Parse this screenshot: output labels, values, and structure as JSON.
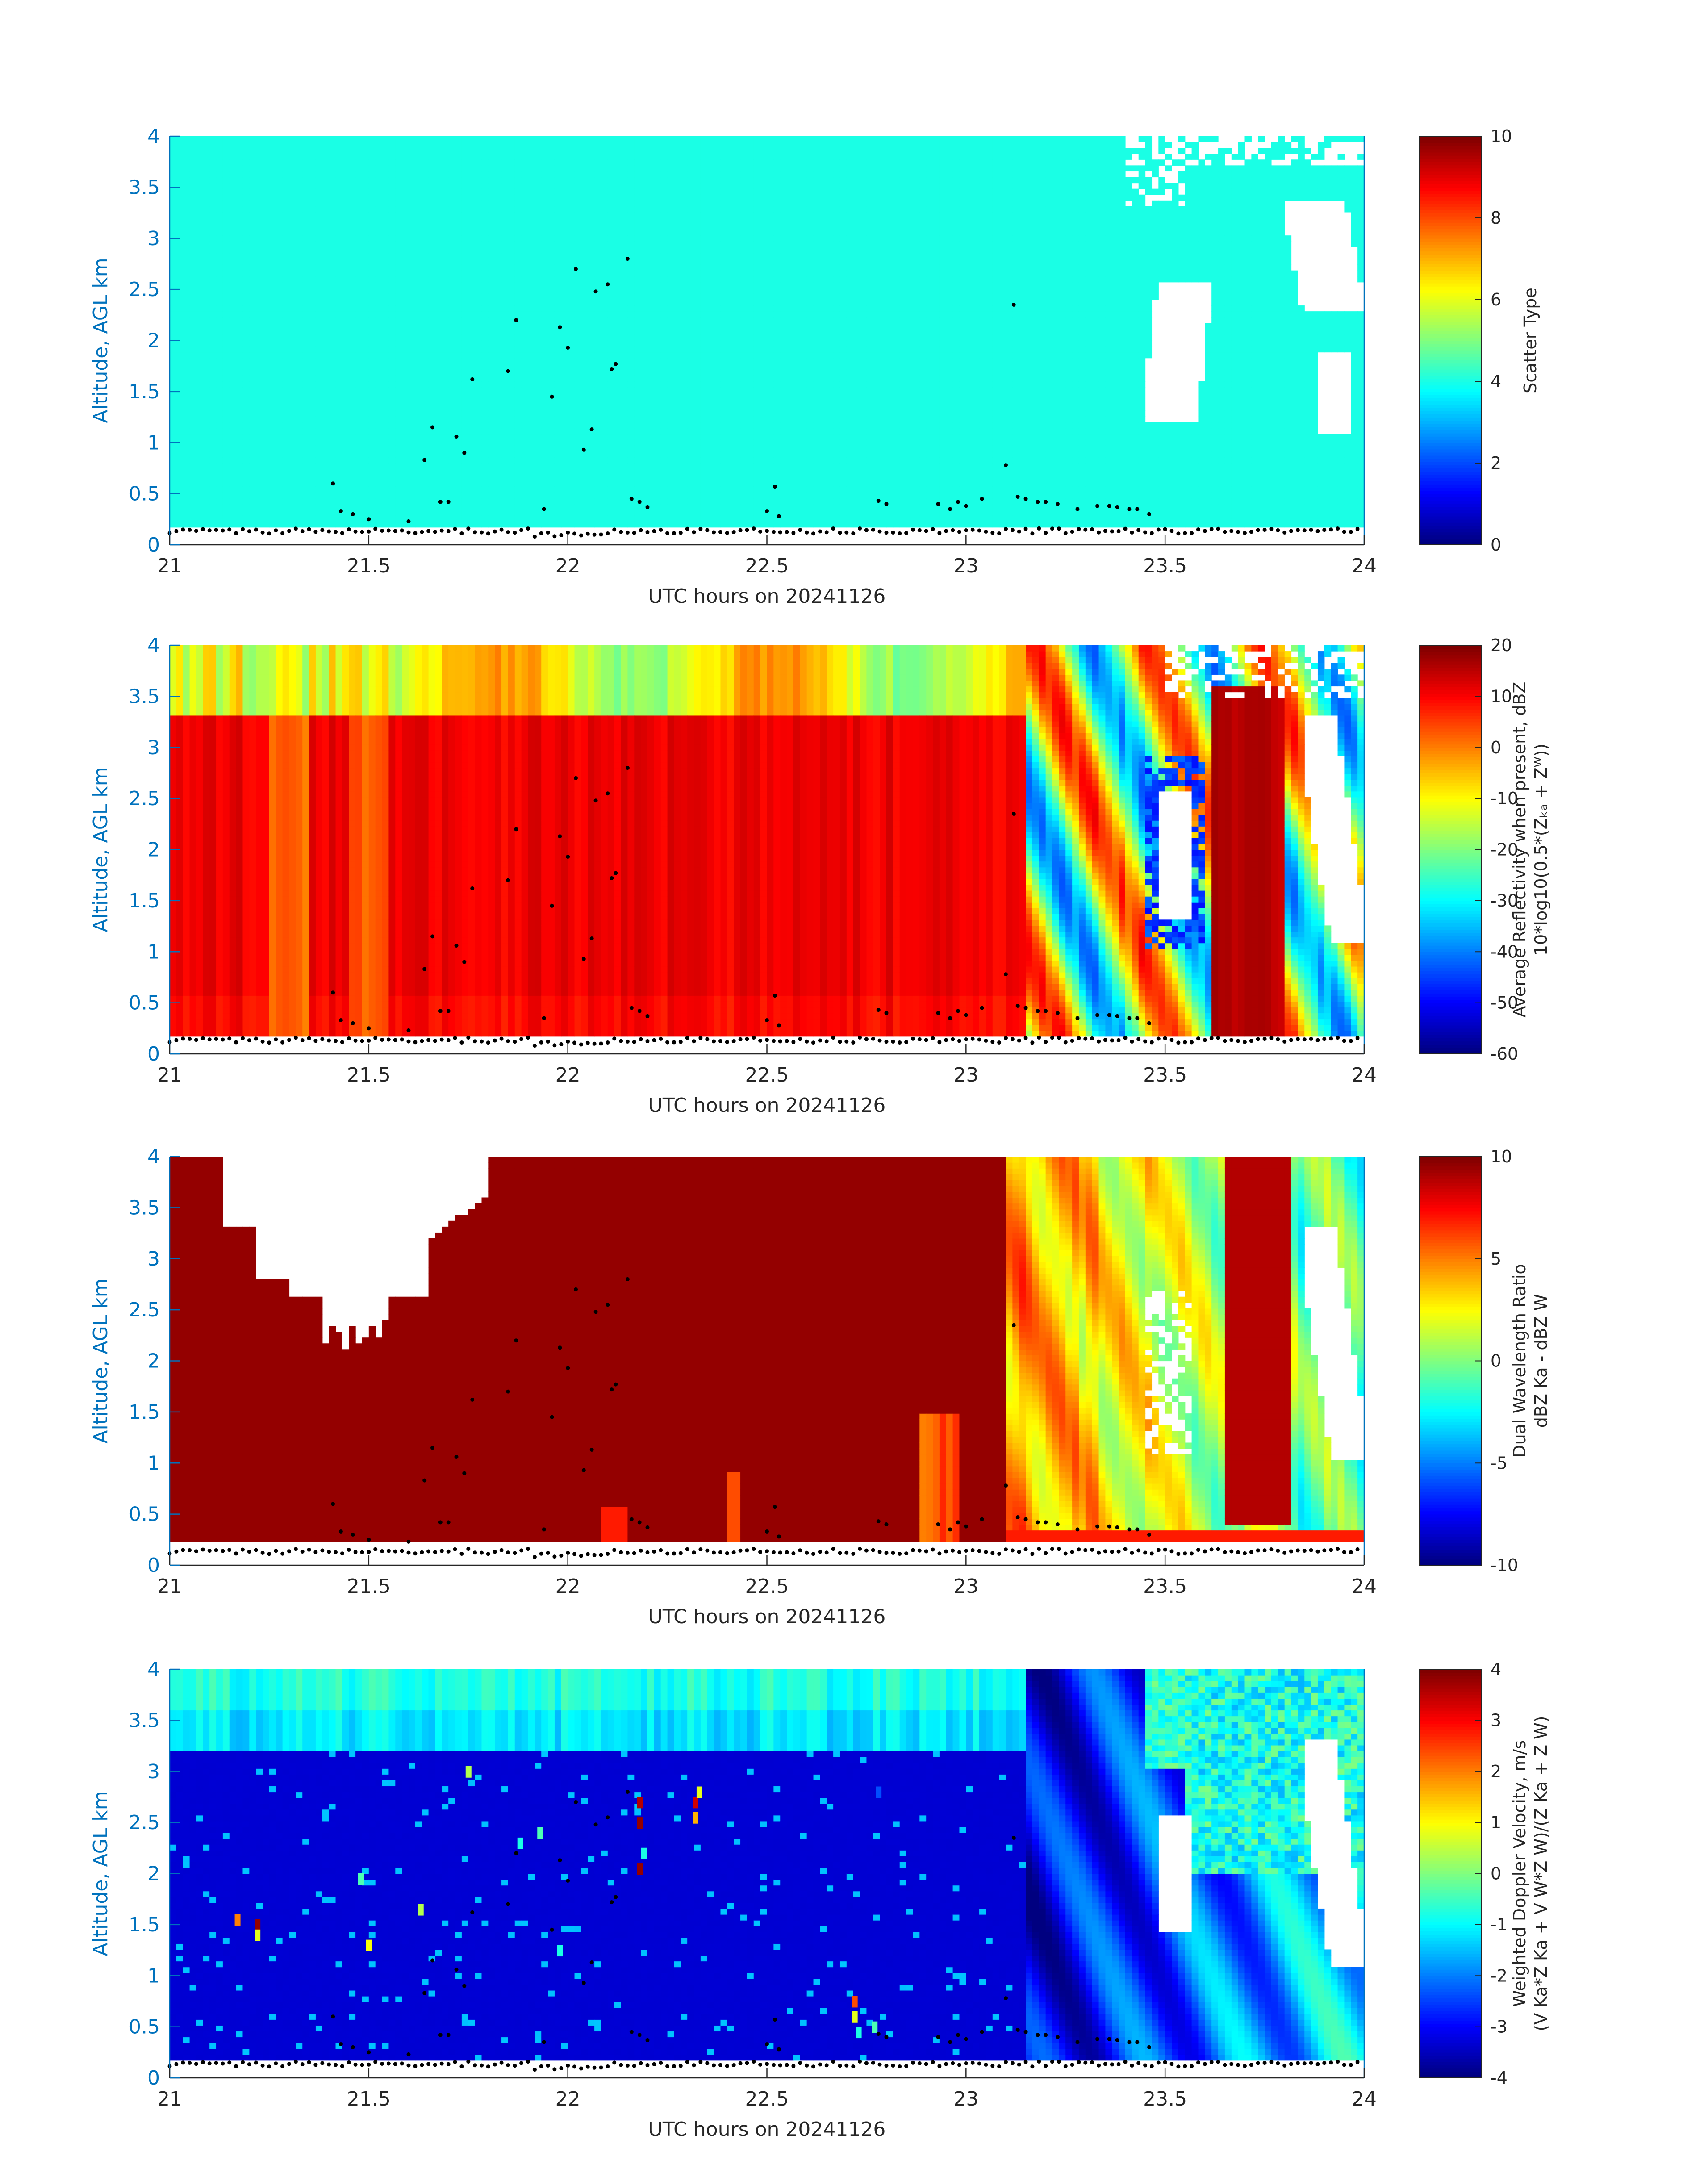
{
  "figure": {
    "date_label": "UTC hours on 20241126"
  },
  "colors": {
    "axis_blue": "#0072BD",
    "text": "#262626",
    "colormap": "jet"
  },
  "chart_data": [
    {
      "type": "heatmap",
      "title": "",
      "xlabel": "UTC hours on 20241126",
      "ylabel": "Altitude, AGL km",
      "xlim": [
        21,
        24
      ],
      "ylim": [
        0,
        4
      ],
      "x_ticks": [
        "21",
        "21.5",
        "22",
        "22.5",
        "23",
        "23.5",
        "24"
      ],
      "y_ticks": [
        "0",
        "0.5",
        "1",
        "1.5",
        "2",
        "2.5",
        "3",
        "3.5",
        "4"
      ],
      "colorbar": {
        "label_lines": [
          "Scatter Type"
        ],
        "range": [
          0,
          10
        ],
        "ticks": [
          "0",
          "2",
          "4",
          "6",
          "8",
          "10"
        ]
      },
      "field": "scatter",
      "note_values": {
        "dominant_value": 4,
        "data_floor_km": 0.2
      }
    },
    {
      "type": "heatmap",
      "title": "",
      "xlabel": "UTC hours on 20241126",
      "ylabel": "Altitude, AGL km",
      "xlim": [
        21,
        24
      ],
      "ylim": [
        0,
        4
      ],
      "x_ticks": [
        "21",
        "21.5",
        "22",
        "22.5",
        "23",
        "23.5",
        "24"
      ],
      "y_ticks": [
        "0",
        "0.5",
        "1",
        "1.5",
        "2",
        "2.5",
        "3",
        "3.5",
        "4"
      ],
      "colorbar": {
        "label_lines": [
          "Average Reflectivity when present, dBZ",
          "10*log10(0.5*(Zₖₐ + Zᵂ))"
        ],
        "range": [
          -60,
          20
        ],
        "ticks": [
          "-60",
          "-50",
          "-40",
          "-30",
          "-20",
          "-10",
          "0",
          "10",
          "20"
        ]
      },
      "field": "reflectivity"
    },
    {
      "type": "heatmap",
      "title": "",
      "xlabel": "UTC hours on 20241126",
      "ylabel": "Altitude, AGL km",
      "xlim": [
        21,
        24
      ],
      "ylim": [
        0,
        4
      ],
      "x_ticks": [
        "21",
        "21.5",
        "22",
        "22.5",
        "23",
        "23.5",
        "24"
      ],
      "y_ticks": [
        "0",
        "0.5",
        "1",
        "1.5",
        "2",
        "2.5",
        "3",
        "3.5",
        "4"
      ],
      "colorbar": {
        "label_lines": [
          "Dual Wavelength Ratio",
          "dBZ Ka - dBZ W"
        ],
        "range": [
          -10,
          10
        ],
        "ticks": [
          "-10",
          "-5",
          "0",
          "5",
          "10"
        ]
      },
      "field": "dwr"
    },
    {
      "type": "heatmap",
      "title": "",
      "xlabel": "UTC hours on 20241126",
      "ylabel": "Altitude, AGL km",
      "xlim": [
        21,
        24
      ],
      "ylim": [
        0,
        4
      ],
      "x_ticks": [
        "21",
        "21.5",
        "22",
        "22.5",
        "23",
        "23.5",
        "24"
      ],
      "y_ticks": [
        "0",
        "0.5",
        "1",
        "1.5",
        "2",
        "2.5",
        "3",
        "3.5",
        "4"
      ],
      "colorbar": {
        "label_lines": [
          "Weighted Doppler Velocity, m/s",
          "(V Ka*Z Ka + V W*Z W)/(Z Ka + Z W)"
        ],
        "range": [
          -4,
          4
        ],
        "ticks": [
          "-4",
          "-3",
          "-2",
          "-1",
          "0",
          "1",
          "2",
          "3",
          "4"
        ]
      },
      "field": "velocity"
    }
  ]
}
